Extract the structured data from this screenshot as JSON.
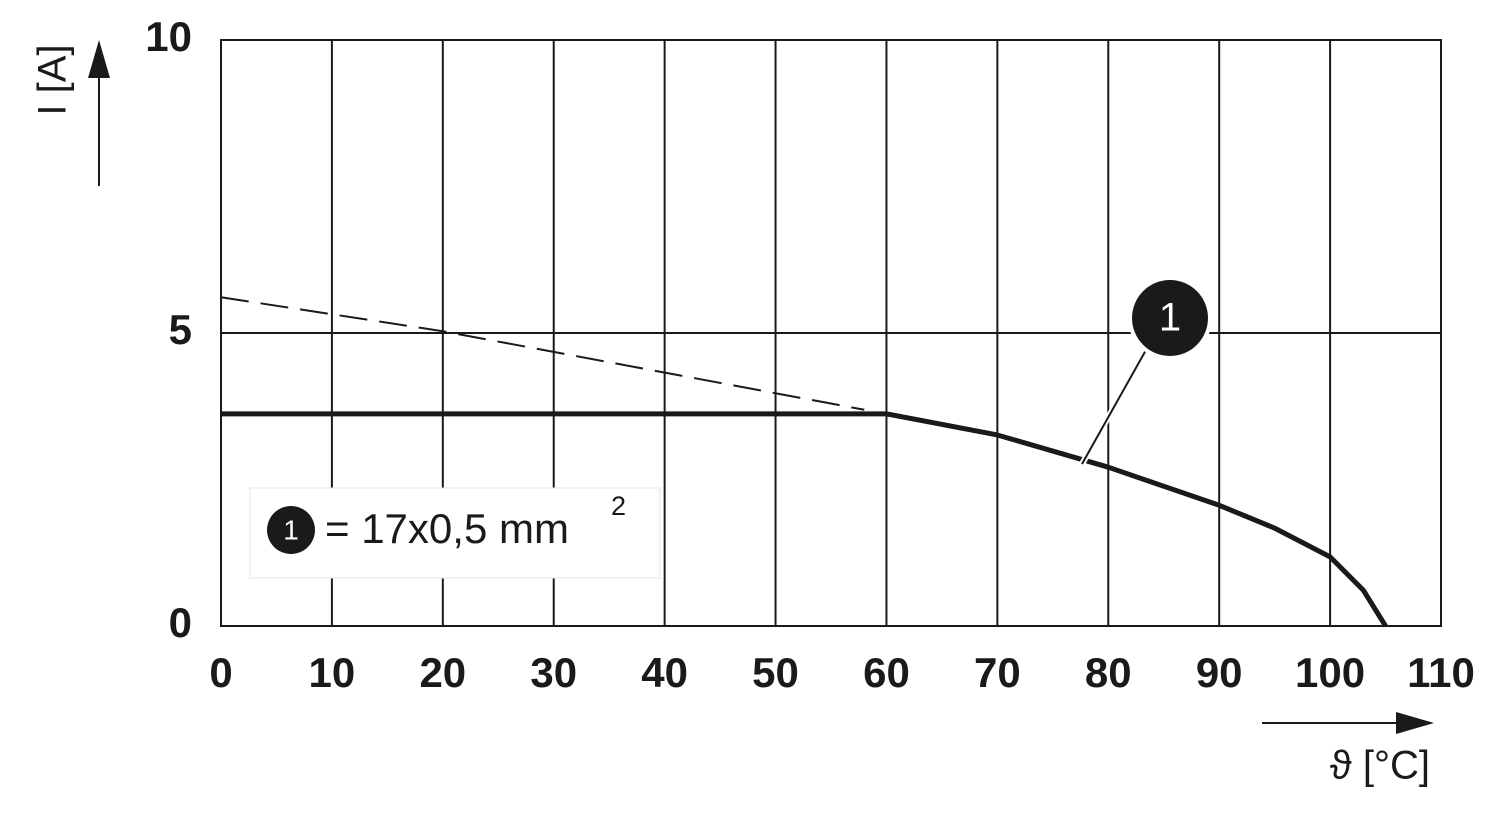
{
  "chart_data": {
    "type": "line",
    "xlabel": "ϑ [°C]",
    "ylabel": "I [A]",
    "x": [
      0,
      20,
      58,
      60,
      70,
      80,
      90,
      95,
      100,
      103,
      105
    ],
    "series": [
      {
        "name": "1",
        "color": "#1a1a1a",
        "dash": false,
        "values": [
          3.62,
          3.62,
          3.62,
          3.62,
          3.26,
          2.71,
          2.06,
          1.67,
          1.18,
          0.61,
          0
        ]
      },
      {
        "color": "#1a1a1a",
        "dash": true,
        "values": [
          5.61,
          5.03,
          3.69,
          null,
          null,
          null,
          null,
          null,
          null,
          null,
          null
        ]
      }
    ],
    "xlim": [
      0,
      110
    ],
    "ylim": [
      0,
      10
    ],
    "xticks": [
      0,
      10,
      20,
      30,
      40,
      50,
      60,
      70,
      80,
      90,
      100,
      110
    ],
    "yticks": [
      0,
      5,
      10
    ],
    "grid": true,
    "legend_text": "= 17x0,5 mm",
    "legend_superscript": "2"
  }
}
